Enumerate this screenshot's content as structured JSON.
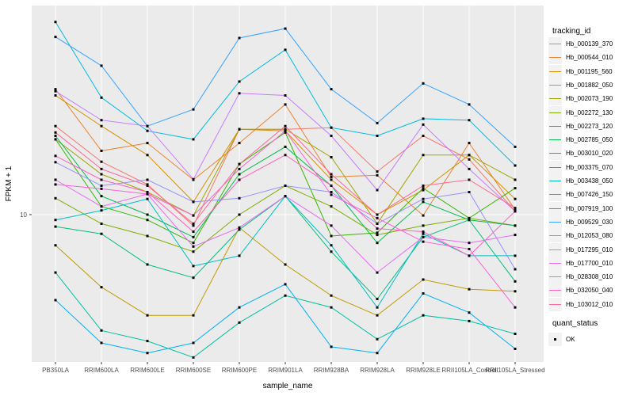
{
  "figure": {
    "y_axis": {
      "title": "FPKM + 1",
      "tick_label": "10"
    },
    "x_axis": {
      "title": "sample_name"
    },
    "legend": {
      "tracking_title": "tracking_id",
      "quant_title": "quant_status",
      "quant_ok_label": "OK"
    },
    "colors": {
      "panel_bg": "#EBEBEB",
      "gridline": "#FFFFFF",
      "legend_key_bg": "#F2F2F2",
      "tick_text": "#4D4D4D",
      "point": "#000000"
    }
  },
  "chart_data": {
    "type": "line",
    "title": "",
    "xlabel": "sample_name",
    "ylabel": "FPKM + 1",
    "yscale": "log10",
    "yticks": [
      10
    ],
    "ylim": [
      1.8,
      115
    ],
    "grid": true,
    "legend_position": "right",
    "point_marker": "filled-black-square",
    "quant_status": "OK",
    "categories": [
      "PB350LA",
      "RRIM600LA",
      "RRIM600LE",
      "RRIM600SE",
      "RRIM600PE",
      "RRIM901LA",
      "RRIM928BA",
      "RRIM928LA",
      "RRIM928LE",
      "RRII105LA_Control",
      "RRII105LA_Stressed"
    ],
    "series": [
      {
        "name": "Hb_000139_370",
        "color": "#F8766D",
        "values": [
          28,
          18.5,
          14.2,
          8.8,
          27,
          27,
          27.5,
          16.5,
          25,
          19,
          10.4
        ]
      },
      {
        "name": "Hb_000544_010",
        "color": "#EA8331",
        "values": [
          43,
          21,
          23,
          15,
          23,
          36,
          15.5,
          15.8,
          9.9,
          23,
          10.6
        ]
      },
      {
        "name": "Hb_001195_560",
        "color": "#D89000",
        "values": [
          40,
          28,
          20,
          11.6,
          27,
          26.5,
          15,
          10,
          13.3,
          20,
          12
        ]
      },
      {
        "name": "Hb_001882_050",
        "color": "#C09B00",
        "values": [
          7,
          4.3,
          3.1,
          3.1,
          8.6,
          5.6,
          3.9,
          3.1,
          4.7,
          4.2,
          4.1
        ]
      },
      {
        "name": "Hb_002073_190",
        "color": "#A3A500",
        "values": [
          24,
          16,
          13,
          9.9,
          27,
          27,
          19.5,
          9,
          20,
          20,
          15
        ]
      },
      {
        "name": "Hb_002272_130",
        "color": "#7CAE00",
        "values": [
          12.1,
          9,
          7.8,
          6.5,
          10,
          14,
          11,
          7.9,
          8.8,
          9.6,
          8.8
        ]
      },
      {
        "name": "Hb_002273_120",
        "color": "#39B600",
        "values": [
          24,
          11,
          9.4,
          7.2,
          18,
          26,
          7.8,
          8.1,
          13.6,
          9.6,
          13.6
        ]
      },
      {
        "name": "Hb_002785_050",
        "color": "#00BB4E",
        "values": [
          25,
          12.4,
          10,
          7.7,
          16,
          22,
          14,
          7.2,
          11.6,
          9.4,
          8.8
        ]
      },
      {
        "name": "Hb_003010_020",
        "color": "#00BF7D",
        "values": [
          8.7,
          8,
          5.6,
          4.8,
          8.4,
          12.4,
          6.5,
          3.75,
          7.7,
          9.4,
          4.6
        ]
      },
      {
        "name": "Hb_003375_070",
        "color": "#00C1A3",
        "values": [
          5.1,
          2.6,
          2.3,
          1.9,
          2.85,
          3.9,
          3.4,
          2.35,
          3.1,
          2.9,
          2.5
        ]
      },
      {
        "name": "Hb_003438_050",
        "color": "#00BFC4",
        "values": [
          9.4,
          10.5,
          12,
          5.5,
          6.2,
          12.4,
          7,
          3.4,
          8,
          6.2,
          6.2
        ]
      },
      {
        "name": "Hb_007426_150",
        "color": "#00BAE0",
        "values": [
          94,
          39,
          26.5,
          24,
          47,
          68,
          27.5,
          25,
          30.5,
          30,
          17.7
        ]
      },
      {
        "name": "Hb_007919_100",
        "color": "#00B0F6",
        "values": [
          3.7,
          2.25,
          2,
          2.25,
          3.4,
          4.45,
          2.15,
          2,
          4,
          3.2,
          2.1
        ]
      },
      {
        "name": "Hb_009529_030",
        "color": "#35A2FF",
        "values": [
          79,
          56.5,
          28,
          34,
          78,
          87,
          43,
          29,
          46,
          36,
          22
        ]
      },
      {
        "name": "Hb_012053_080",
        "color": "#9590FF",
        "values": [
          18.4,
          14,
          15,
          11.6,
          12.1,
          14,
          13,
          9,
          12,
          13,
          5.3
        ]
      },
      {
        "name": "Hb_017295_010",
        "color": "#C77CFF",
        "values": [
          42,
          30,
          28,
          15.1,
          41,
          40,
          25,
          13.3,
          28.5,
          17,
          10.4
        ]
      },
      {
        "name": "Hb_017700_010",
        "color": "#E76BF3",
        "values": [
          15,
          11,
          12.7,
          6.9,
          8.6,
          12.4,
          8.8,
          5.1,
          7.7,
          7.2,
          7.9
        ]
      },
      {
        "name": "Hb_028308_010",
        "color": "#FA62DB",
        "values": [
          14.2,
          13.5,
          12.7,
          9.9,
          17,
          26.5,
          12.6,
          9.6,
          7.3,
          6.7,
          3.4
        ]
      },
      {
        "name": "Hb_032050_040",
        "color": "#FF62BC",
        "values": [
          19.8,
          15,
          13,
          8.2,
          15,
          20,
          14,
          8.5,
          8.2,
          6.2,
          10.4
        ]
      },
      {
        "name": "Hb_103012_010",
        "color": "#FF6A98",
        "values": [
          26,
          17,
          14,
          9,
          18,
          28,
          16,
          10,
          14,
          15,
          10.8
        ]
      }
    ]
  }
}
